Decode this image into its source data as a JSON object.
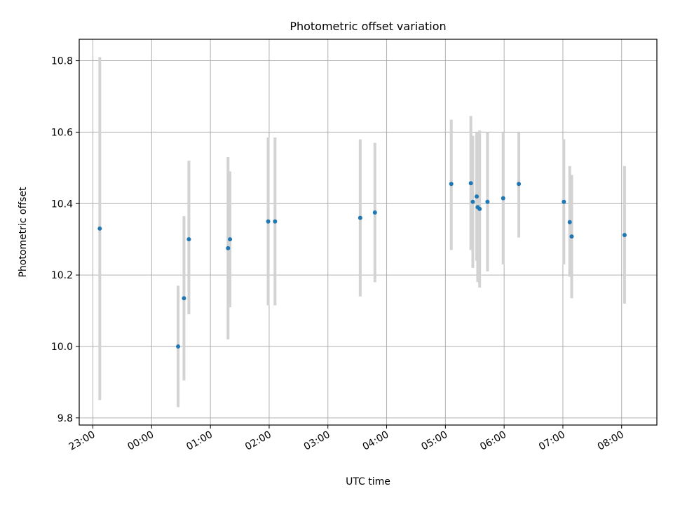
{
  "chart_data": {
    "type": "scatter",
    "title": "Photometric offset variation",
    "xlabel": "UTC time",
    "ylabel": "Photometric offset",
    "x_tick_labels": [
      "23:00",
      "00:00",
      "01:00",
      "02:00",
      "03:00",
      "04:00",
      "05:00",
      "06:00",
      "07:00",
      "08:00"
    ],
    "y_ticks": [
      9.8,
      10.0,
      10.2,
      10.4,
      10.6,
      10.8
    ],
    "y_tick_labels": [
      "9.8",
      "10.0",
      "10.2",
      "10.4",
      "10.6",
      "10.8"
    ],
    "xlim": [
      "22:46",
      "08:36"
    ],
    "ylim": [
      9.78,
      10.86
    ],
    "grid": true,
    "colors": {
      "point": "#1f77b4",
      "errorbar": "#d3d3d3",
      "grid": "#b0b0b0"
    },
    "points": [
      {
        "x": "23:07",
        "y": 10.33,
        "ylow": 9.85,
        "yhigh": 10.81
      },
      {
        "x": "00:27",
        "y": 10.0,
        "ylow": 9.83,
        "yhigh": 10.17
      },
      {
        "x": "00:33",
        "y": 10.135,
        "ylow": 9.905,
        "yhigh": 10.365
      },
      {
        "x": "00:38",
        "y": 10.3,
        "ylow": 10.09,
        "yhigh": 10.52
      },
      {
        "x": "01:18",
        "y": 10.275,
        "ylow": 10.02,
        "yhigh": 10.53
      },
      {
        "x": "01:20",
        "y": 10.3,
        "ylow": 10.11,
        "yhigh": 10.49
      },
      {
        "x": "01:59",
        "y": 10.35,
        "ylow": 10.115,
        "yhigh": 10.585
      },
      {
        "x": "02:06",
        "y": 10.35,
        "ylow": 10.115,
        "yhigh": 10.585
      },
      {
        "x": "03:33",
        "y": 10.36,
        "ylow": 10.14,
        "yhigh": 10.58
      },
      {
        "x": "03:48",
        "y": 10.375,
        "ylow": 10.18,
        "yhigh": 10.57
      },
      {
        "x": "05:06",
        "y": 10.455,
        "ylow": 10.27,
        "yhigh": 10.635
      },
      {
        "x": "05:26",
        "y": 10.457,
        "ylow": 10.27,
        "yhigh": 10.645
      },
      {
        "x": "05:28",
        "y": 10.405,
        "ylow": 10.22,
        "yhigh": 10.59
      },
      {
        "x": "05:32",
        "y": 10.42,
        "ylow": 10.24,
        "yhigh": 10.6
      },
      {
        "x": "05:33",
        "y": 10.39,
        "ylow": 10.18,
        "yhigh": 10.6
      },
      {
        "x": "05:35",
        "y": 10.385,
        "ylow": 10.165,
        "yhigh": 10.605
      },
      {
        "x": "05:43",
        "y": 10.405,
        "ylow": 10.21,
        "yhigh": 10.6
      },
      {
        "x": "05:59",
        "y": 10.415,
        "ylow": 10.23,
        "yhigh": 10.6
      },
      {
        "x": "06:15",
        "y": 10.455,
        "ylow": 10.305,
        "yhigh": 10.6
      },
      {
        "x": "07:01",
        "y": 10.405,
        "ylow": 10.23,
        "yhigh": 10.58
      },
      {
        "x": "07:07",
        "y": 10.348,
        "ylow": 10.195,
        "yhigh": 10.505
      },
      {
        "x": "07:09",
        "y": 10.308,
        "ylow": 10.135,
        "yhigh": 10.48
      },
      {
        "x": "08:03",
        "y": 10.312,
        "ylow": 10.12,
        "yhigh": 10.505
      }
    ]
  }
}
